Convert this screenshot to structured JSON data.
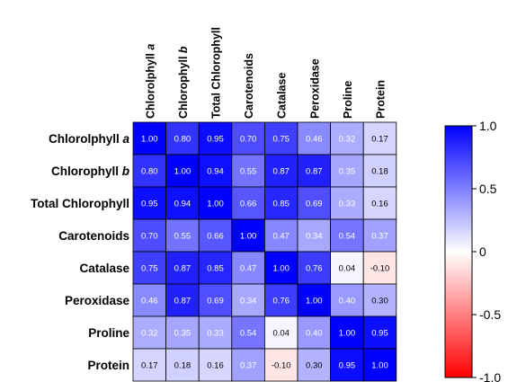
{
  "chart_data": {
    "type": "heatmap",
    "title": "",
    "xlabel": "",
    "ylabel": "",
    "row_labels": [
      {
        "text": "Chlorolphyll ",
        "italic": "a"
      },
      {
        "text": "Chlorophyll ",
        "italic": "b"
      },
      {
        "text": "Total Chlorophyll",
        "italic": ""
      },
      {
        "text": "Carotenoids",
        "italic": ""
      },
      {
        "text": "Catalase",
        "italic": ""
      },
      {
        "text": "Peroxidase",
        "italic": ""
      },
      {
        "text": "Proline",
        "italic": ""
      },
      {
        "text": "Protein",
        "italic": ""
      }
    ],
    "column_labels": [
      {
        "text": "Chlorolphyll ",
        "italic": "a"
      },
      {
        "text": "Chlorophyll ",
        "italic": "b"
      },
      {
        "text": "Total Chlorophyll",
        "italic": ""
      },
      {
        "text": "Carotenoids",
        "italic": ""
      },
      {
        "text": "Catalase",
        "italic": ""
      },
      {
        "text": "Peroxidase",
        "italic": ""
      },
      {
        "text": "Proline",
        "italic": ""
      },
      {
        "text": "Protein",
        "italic": ""
      }
    ],
    "values": [
      [
        1.0,
        0.8,
        0.95,
        0.7,
        0.75,
        0.46,
        0.32,
        0.17
      ],
      [
        0.8,
        1.0,
        0.94,
        0.55,
        0.87,
        0.87,
        0.35,
        0.18
      ],
      [
        0.95,
        0.94,
        1.0,
        0.66,
        0.85,
        0.69,
        0.33,
        0.16
      ],
      [
        0.7,
        0.55,
        0.66,
        1.0,
        0.47,
        0.34,
        0.54,
        0.37
      ],
      [
        0.75,
        0.87,
        0.85,
        0.47,
        1.0,
        0.76,
        0.04,
        -0.1
      ],
      [
        0.46,
        0.87,
        0.69,
        0.34,
        0.76,
        1.0,
        0.4,
        0.3
      ],
      [
        0.32,
        0.35,
        0.33,
        0.54,
        0.04,
        0.4,
        1.0,
        0.95
      ],
      [
        0.17,
        0.18,
        0.16,
        0.37,
        -0.1,
        0.3,
        0.95,
        1.0
      ]
    ],
    "value_labels": [
      [
        "1.00",
        "0.80",
        "0.95",
        "0.70",
        "0.75",
        "0.46",
        "0.32",
        "0.17"
      ],
      [
        "0.80",
        "1.00",
        "0.94",
        "0.55",
        "0.87",
        "0.87",
        "0.35",
        "0.18"
      ],
      [
        "0.95",
        "0.94",
        "1.00",
        "0.66",
        "0.85",
        "0.69",
        "0.33",
        "0.16"
      ],
      [
        "0.70",
        "0.55",
        "0.66",
        "1.00",
        "0.47",
        "0.34",
        "0.54",
        "0.37"
      ],
      [
        "0.75",
        "0.87",
        "0.85",
        "0.47",
        "1.00",
        "0.76",
        "0.04",
        "-0.10"
      ],
      [
        "0.46",
        "0.87",
        "0.69",
        "0.34",
        "0.76",
        "1.00",
        "0.40",
        "0.30"
      ],
      [
        "0.32",
        "0.35",
        "0.33",
        "0.54",
        "0.04",
        "0.40",
        "1.00",
        "0.95"
      ],
      [
        "0.17",
        "0.18",
        "0.16",
        "0.37",
        "-0.10",
        "0.30",
        "0.95",
        "1.00"
      ]
    ],
    "color_scale": {
      "min": -1.0,
      "max": 1.0,
      "min_color": "#ff0000",
      "mid_color": "#ffffff",
      "max_color": "#0000ff",
      "ticks": [
        1.0,
        0.5,
        0,
        -0.5,
        -1.0
      ],
      "tick_labels": [
        "1.0",
        "0.5",
        "0",
        "-0.5",
        "-1.0"
      ],
      "legend_position": "right"
    },
    "grid": true,
    "cell_border_color": "#000000"
  }
}
